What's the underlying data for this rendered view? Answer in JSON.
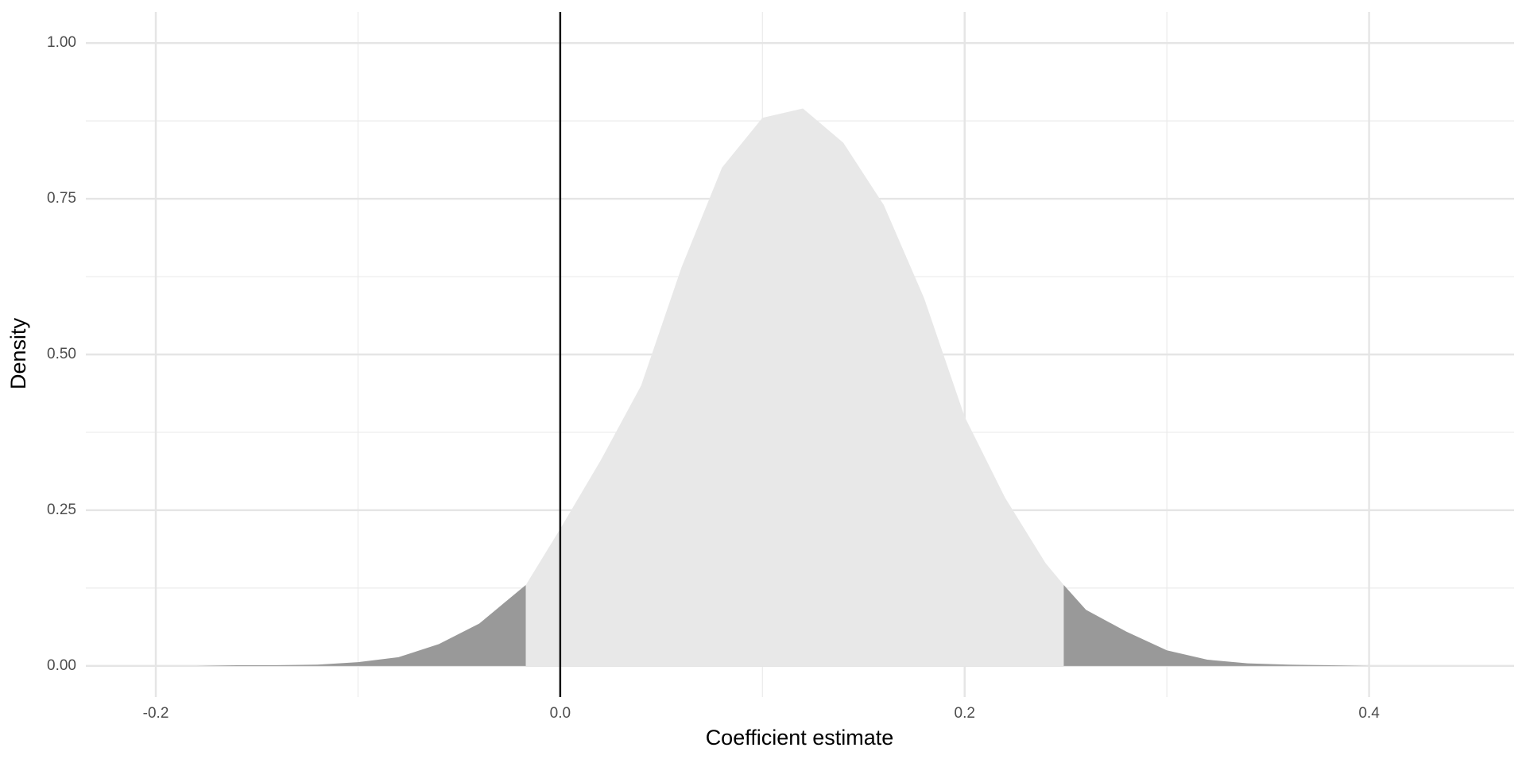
{
  "chart_data": {
    "type": "density",
    "x_label": "Coefficient estimate",
    "y_label": "Density",
    "x": [
      -0.2,
      -0.18,
      -0.16,
      -0.14,
      -0.12,
      -0.1,
      -0.08,
      -0.06,
      -0.04,
      -0.02,
      -0.017,
      0.0,
      0.02,
      0.04,
      0.06,
      0.08,
      0.1,
      0.12,
      0.14,
      0.16,
      0.18,
      0.2,
      0.22,
      0.24,
      0.249,
      0.26,
      0.28,
      0.3,
      0.32,
      0.34,
      0.36,
      0.38,
      0.4
    ],
    "values": [
      0.0,
      0.0,
      0.001,
      0.001,
      0.002,
      0.006,
      0.014,
      0.035,
      0.068,
      0.122,
      0.13,
      0.22,
      0.33,
      0.45,
      0.64,
      0.8,
      0.88,
      0.895,
      0.84,
      0.74,
      0.59,
      0.4,
      0.27,
      0.165,
      0.13,
      0.09,
      0.055,
      0.025,
      0.01,
      0.004,
      0.002,
      0.001,
      0.0
    ],
    "shade_below": -0.017,
    "shade_above": 0.249,
    "tail_color": "#999999",
    "center_color": "#e8e8e8",
    "vline": 0,
    "xlim": [
      -0.2346,
      0.4717
    ],
    "ylim": [
      -0.05,
      1.05
    ],
    "xticks": [
      -0.2,
      {
        "value": 0,
        "label": "0.0"
      },
      0.2,
      0.4
    ],
    "yticks": [
      {
        "value": 0,
        "label": "0.00"
      },
      {
        "value": 0.25,
        "label": "0.25"
      },
      {
        "value": 0.5,
        "label": "0.50"
      },
      {
        "value": 0.75,
        "label": "0.75"
      },
      {
        "value": 1,
        "label": "1.00"
      }
    ],
    "x_minor_grid": [
      -0.1,
      0.1,
      0.3
    ],
    "y_minor_grid": [
      0.125,
      0.375,
      0.625,
      0.875
    ],
    "grid": true
  }
}
